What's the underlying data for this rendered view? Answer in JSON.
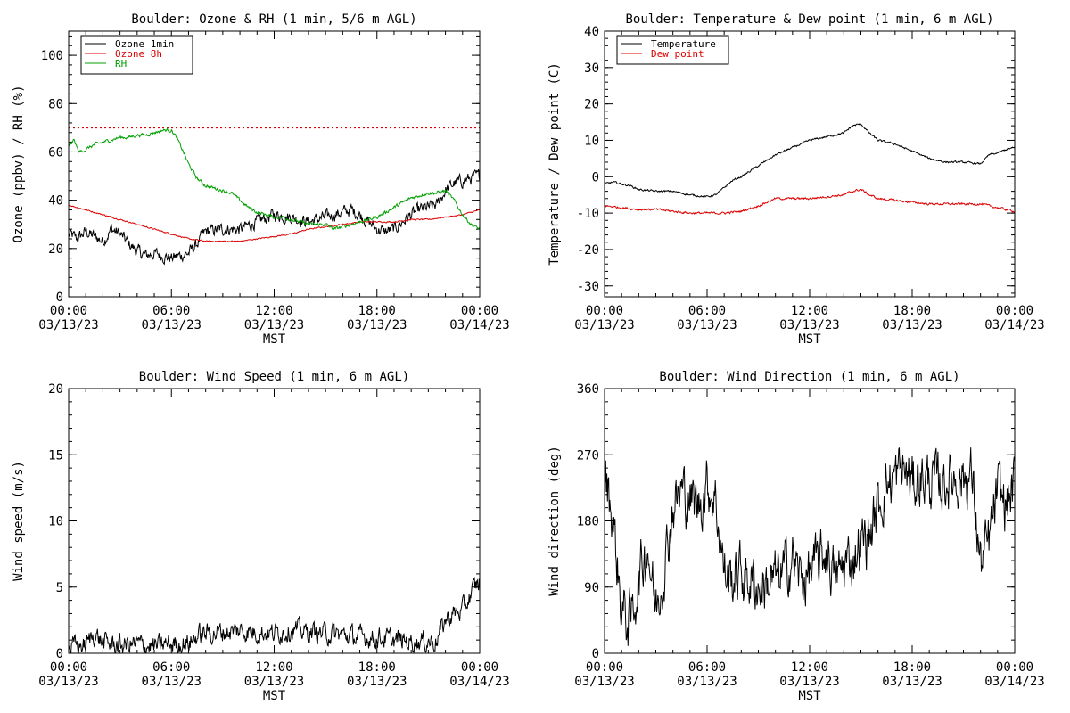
{
  "chart_data": [
    {
      "id": "ozone_rh",
      "type": "line",
      "title": "Boulder: Ozone & RH (1 min, 5/6 m AGL)",
      "xlabel": "MST",
      "ylabel": "Ozone (ppbv) / RH (%)",
      "xlim": [
        0,
        24
      ],
      "ylim": [
        0,
        110
      ],
      "yticks": [
        0,
        20,
        40,
        60,
        80,
        100
      ],
      "xticks": [
        {
          "time": "00:00",
          "date": "03/13/23",
          "value": 0
        },
        {
          "time": "06:00",
          "date": "03/13/23",
          "value": 6
        },
        {
          "time": "12:00",
          "date": "03/13/23",
          "value": 12
        },
        {
          "time": "18:00",
          "date": "03/13/23",
          "value": 18
        },
        {
          "time": "00:00",
          "date": "03/14/23",
          "value": 24
        }
      ],
      "legend_position": "top-left",
      "reference_line": {
        "y": 70,
        "color": "#dd0000",
        "style": "dotted"
      },
      "series": [
        {
          "name": "Ozone 1min",
          "color": "#000000",
          "noise": 3,
          "x": [
            0,
            0.5,
            1,
            1.5,
            2,
            2.5,
            3,
            3.5,
            4,
            4.5,
            5,
            5.5,
            6,
            6.5,
            7,
            7.5,
            8,
            9,
            10,
            11,
            12,
            13,
            14,
            15,
            16,
            16.5,
            17,
            17.5,
            18,
            18.5,
            19,
            19.5,
            20,
            20.5,
            21,
            21.5,
            22,
            22.5,
            23,
            23.5,
            24
          ],
          "y": [
            26,
            24,
            27,
            25,
            23,
            28,
            26,
            22,
            19,
            17,
            18,
            17,
            16,
            17,
            18,
            22,
            27,
            28,
            28,
            31,
            34,
            33,
            31,
            33,
            35,
            36,
            34,
            31,
            28,
            27,
            28,
            31,
            34,
            36,
            37,
            38,
            44,
            47,
            48,
            49,
            50
          ]
        },
        {
          "name": "Ozone 8h",
          "color": "#dd0000",
          "noise": 0.3,
          "x": [
            0,
            1,
            2,
            3,
            4,
            5,
            6,
            7,
            8,
            9,
            10,
            11,
            12,
            13,
            14,
            15,
            16,
            17,
            18,
            19,
            20,
            21,
            22,
            23,
            24
          ],
          "y": [
            38,
            36,
            34,
            32,
            30,
            28,
            26,
            24,
            23,
            23,
            23,
            24,
            25,
            26,
            28,
            29,
            30,
            31,
            31,
            31,
            32,
            32,
            33,
            34,
            36
          ]
        },
        {
          "name": "RH",
          "color": "#00a000",
          "noise": 0.8,
          "x": [
            0,
            0.3,
            0.6,
            1,
            1.5,
            2,
            2.5,
            3,
            3.5,
            4,
            4.5,
            5,
            5.5,
            6,
            6.3,
            6.7,
            7,
            7.5,
            8,
            8.5,
            9,
            9.5,
            10,
            10.5,
            11,
            11.5,
            12,
            12.5,
            13,
            13.5,
            14,
            14.5,
            15,
            15.5,
            16,
            16.5,
            17,
            17.5,
            18,
            18.5,
            19,
            19.5,
            20,
            20.5,
            21,
            21.5,
            22,
            22.5,
            23,
            23.5,
            24
          ],
          "y": [
            62,
            65,
            60,
            61,
            63,
            64,
            65,
            66,
            66,
            67,
            67,
            68,
            69,
            69,
            66,
            60,
            55,
            49,
            46,
            45,
            44,
            43,
            40,
            37,
            35,
            34,
            33,
            33,
            32,
            31,
            30,
            30,
            30,
            28,
            29,
            30,
            31,
            32,
            33,
            35,
            37,
            39,
            41,
            42,
            43,
            43,
            44,
            40,
            34,
            30,
            28
          ]
        }
      ]
    },
    {
      "id": "temp_dew",
      "type": "line",
      "title": "Boulder: Temperature & Dew point (1 min, 6 m AGL)",
      "xlabel": "MST",
      "ylabel": "Temperature / Dew point (C)",
      "xlim": [
        0,
        24
      ],
      "ylim": [
        -33,
        40
      ],
      "yticks": [
        -30,
        -20,
        -10,
        0,
        10,
        20,
        30,
        40
      ],
      "xticks": [
        {
          "time": "00:00",
          "date": "03/13/23",
          "value": 0
        },
        {
          "time": "06:00",
          "date": "03/13/23",
          "value": 6
        },
        {
          "time": "12:00",
          "date": "03/13/23",
          "value": 12
        },
        {
          "time": "18:00",
          "date": "03/13/23",
          "value": 18
        },
        {
          "time": "00:00",
          "date": "03/14/23",
          "value": 24
        }
      ],
      "legend_position": "top-left",
      "series": [
        {
          "name": "Temperature",
          "color": "#000000",
          "noise": 0.3,
          "x": [
            0,
            0.5,
            1,
            1.5,
            2,
            3,
            4,
            5,
            6,
            6.5,
            7,
            7.5,
            8,
            9,
            10,
            11,
            12,
            13,
            14,
            14.5,
            15,
            15.5,
            16,
            17,
            18,
            19,
            20,
            21,
            22,
            22.5,
            23,
            23.5,
            24
          ],
          "y": [
            -2,
            -1.5,
            -2,
            -2.5,
            -3.5,
            -4,
            -4,
            -5,
            -5.5,
            -5,
            -3,
            -1,
            0,
            3,
            6,
            8,
            10,
            11,
            12,
            14,
            14.5,
            12,
            10,
            9,
            7,
            5,
            4,
            4,
            3.5,
            6,
            6.5,
            7.5,
            8
          ]
        },
        {
          "name": "Dew point",
          "color": "#dd0000",
          "noise": 0.35,
          "x": [
            0,
            1,
            2,
            3,
            4,
            5,
            6,
            7,
            8,
            9,
            10,
            11,
            12,
            13,
            14,
            14.5,
            15,
            15.5,
            16,
            17,
            18,
            19,
            20,
            21,
            22,
            23,
            24
          ],
          "y": [
            -8,
            -8.5,
            -9,
            -9,
            -9.5,
            -10,
            -10,
            -10,
            -9.5,
            -8,
            -6,
            -6,
            -6,
            -5.5,
            -5,
            -4,
            -3.5,
            -5,
            -6,
            -6.5,
            -7,
            -7.5,
            -7.5,
            -7.5,
            -7.5,
            -8.5,
            -9.5
          ]
        }
      ]
    },
    {
      "id": "wind_speed",
      "type": "line",
      "title": "Boulder: Wind Speed (1 min, 6 m AGL)",
      "xlabel": "MST",
      "ylabel": "Wind speed (m/s)",
      "xlim": [
        0,
        24
      ],
      "ylim": [
        0,
        20
      ],
      "yticks": [
        0,
        5,
        10,
        15,
        20
      ],
      "xticks": [
        {
          "time": "00:00",
          "date": "03/13/23",
          "value": 0
        },
        {
          "time": "06:00",
          "date": "03/13/23",
          "value": 6
        },
        {
          "time": "12:00",
          "date": "03/13/23",
          "value": 12
        },
        {
          "time": "18:00",
          "date": "03/13/23",
          "value": 18
        },
        {
          "time": "00:00",
          "date": "03/14/23",
          "value": 24
        }
      ],
      "series": [
        {
          "name": "",
          "color": "#000000",
          "noise": 0.9,
          "x": [
            0,
            1,
            1.5,
            2,
            3,
            4,
            5,
            6,
            7,
            7.5,
            8,
            9,
            10,
            11,
            12,
            13,
            14,
            15,
            16,
            17,
            18,
            19,
            20,
            21,
            21.5,
            22,
            22.5,
            23,
            23.5,
            24
          ],
          "y": [
            0.5,
            0.6,
            1.5,
            0.8,
            0.6,
            0.7,
            0.5,
            0.7,
            0.8,
            1.3,
            1.5,
            1.6,
            1.7,
            1.6,
            1.5,
            1.8,
            1.6,
            1.5,
            1.4,
            1.2,
            1.2,
            1.0,
            0.9,
            0.9,
            1.0,
            2.5,
            3.0,
            3.2,
            4.5,
            5.5
          ]
        }
      ]
    },
    {
      "id": "wind_dir",
      "type": "line",
      "title": "Boulder: Wind Direction (1 min, 6 m AGL)",
      "xlabel": "MST",
      "ylabel": "Wind direction (deg)",
      "xlim": [
        0,
        24
      ],
      "ylim": [
        0,
        360
      ],
      "yticks": [
        0,
        90,
        180,
        270,
        360
      ],
      "xticks": [
        {
          "time": "00:00",
          "date": "03/13/23",
          "value": 0
        },
        {
          "time": "06:00",
          "date": "03/13/23",
          "value": 6
        },
        {
          "time": "12:00",
          "date": "03/13/23",
          "value": 12
        },
        {
          "time": "18:00",
          "date": "03/13/23",
          "value": 18
        },
        {
          "time": "00:00",
          "date": "03/14/23",
          "value": 24
        }
      ],
      "series": [
        {
          "name": "",
          "color": "#000000",
          "noise": 45,
          "x": [
            0,
            0.5,
            1,
            1.5,
            2,
            2.5,
            3,
            3.5,
            4,
            4.5,
            5,
            5.5,
            6,
            6.5,
            7,
            7.5,
            8,
            8.5,
            9,
            9.5,
            10,
            10.5,
            11,
            11.5,
            12,
            12.5,
            13,
            13.5,
            14,
            14.5,
            15,
            15.5,
            16,
            16.5,
            17,
            17.5,
            18,
            18.5,
            19,
            19.5,
            20,
            20.5,
            21,
            21.5,
            22,
            22.5,
            23,
            23.5,
            24
          ],
          "y": [
            250,
            180,
            60,
            40,
            100,
            150,
            60,
            120,
            200,
            220,
            210,
            200,
            230,
            210,
            110,
            100,
            110,
            100,
            90,
            95,
            100,
            110,
            130,
            100,
            110,
            120,
            140,
            100,
            120,
            130,
            150,
            160,
            200,
            230,
            240,
            250,
            230,
            240,
            235,
            230,
            235,
            240,
            240,
            240,
            120,
            150,
            220,
            200,
            230
          ]
        }
      ]
    }
  ]
}
